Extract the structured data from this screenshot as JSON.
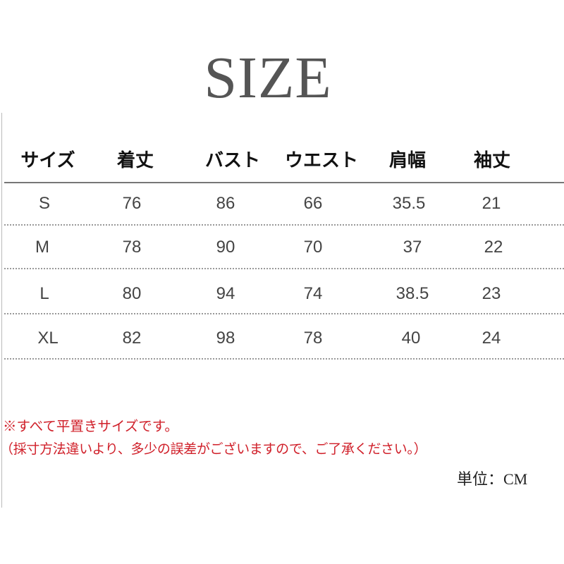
{
  "title": "SIZE",
  "table": {
    "headers": [
      "サイズ",
      "着丈",
      "バスト",
      "ウエスト",
      "肩幅",
      "袖丈"
    ],
    "rows": [
      [
        "S",
        "76",
        "86",
        "66",
        "35.5",
        "21"
      ],
      [
        "M",
        "78",
        "90",
        "70",
        "37",
        "22"
      ],
      [
        "L",
        "80",
        "94",
        "74",
        "38.5",
        "23"
      ],
      [
        "XL",
        "82",
        "98",
        "78",
        "40",
        "24"
      ]
    ]
  },
  "notes": {
    "line1": "※すべて平置きサイズです。",
    "line2": "（採寸方法違いより、多少の誤差がございますので、ご了承ください。）",
    "unit": "単位：CM"
  },
  "colors": {
    "title": "#555555",
    "note": "#d0202a"
  }
}
